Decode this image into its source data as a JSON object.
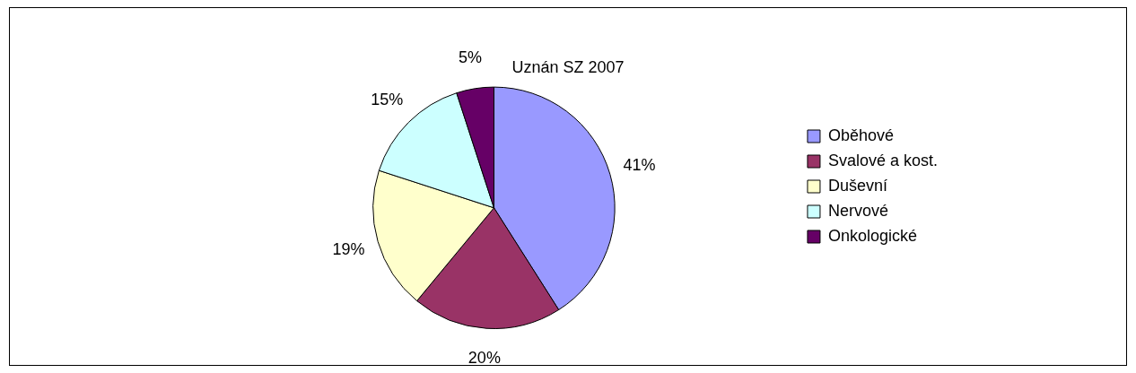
{
  "chart_data": {
    "type": "pie",
    "title": "Uznán SZ 2007",
    "categories": [
      "Oběhové",
      "Svalové a kost.",
      "Duševní",
      "Nervové",
      "Onkologické"
    ],
    "values": [
      41,
      20,
      19,
      15,
      5
    ],
    "value_labels": [
      "41%",
      "20%",
      "19%",
      "15%",
      "5%"
    ],
    "colors": [
      "#9999ff",
      "#993366",
      "#ffffcc",
      "#ccffff",
      "#660066"
    ],
    "legend": "right"
  }
}
